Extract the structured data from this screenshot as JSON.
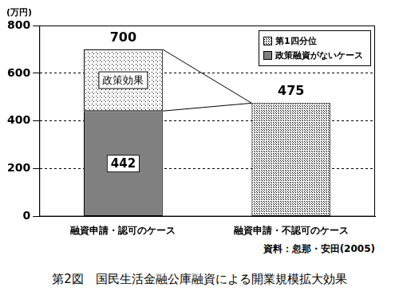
{
  "chart_data": {
    "type": "bar",
    "stacked": true,
    "title": "第2図　国民生活金融公庫融資による開業規模拡大効果",
    "y_label": "(万円)",
    "source": "資料：忽那・安田(2005)",
    "categories": [
      "融資申請・認可のケース",
      "融資申請・不認可のケース"
    ],
    "series": [
      {
        "name": "政策融資がないケース",
        "color": "#808080",
        "values": [
          442,
          null
        ],
        "data_labels": true
      },
      {
        "name": "第1四分位",
        "color": "#ffffff",
        "values": [
          258,
          475
        ]
      }
    ],
    "totals": [
      700,
      475
    ],
    "annotation": "政策効果",
    "ylim": [
      0,
      800
    ],
    "yticks": [
      0,
      200,
      400,
      600,
      800
    ],
    "grid": true,
    "legend": "top-right"
  }
}
